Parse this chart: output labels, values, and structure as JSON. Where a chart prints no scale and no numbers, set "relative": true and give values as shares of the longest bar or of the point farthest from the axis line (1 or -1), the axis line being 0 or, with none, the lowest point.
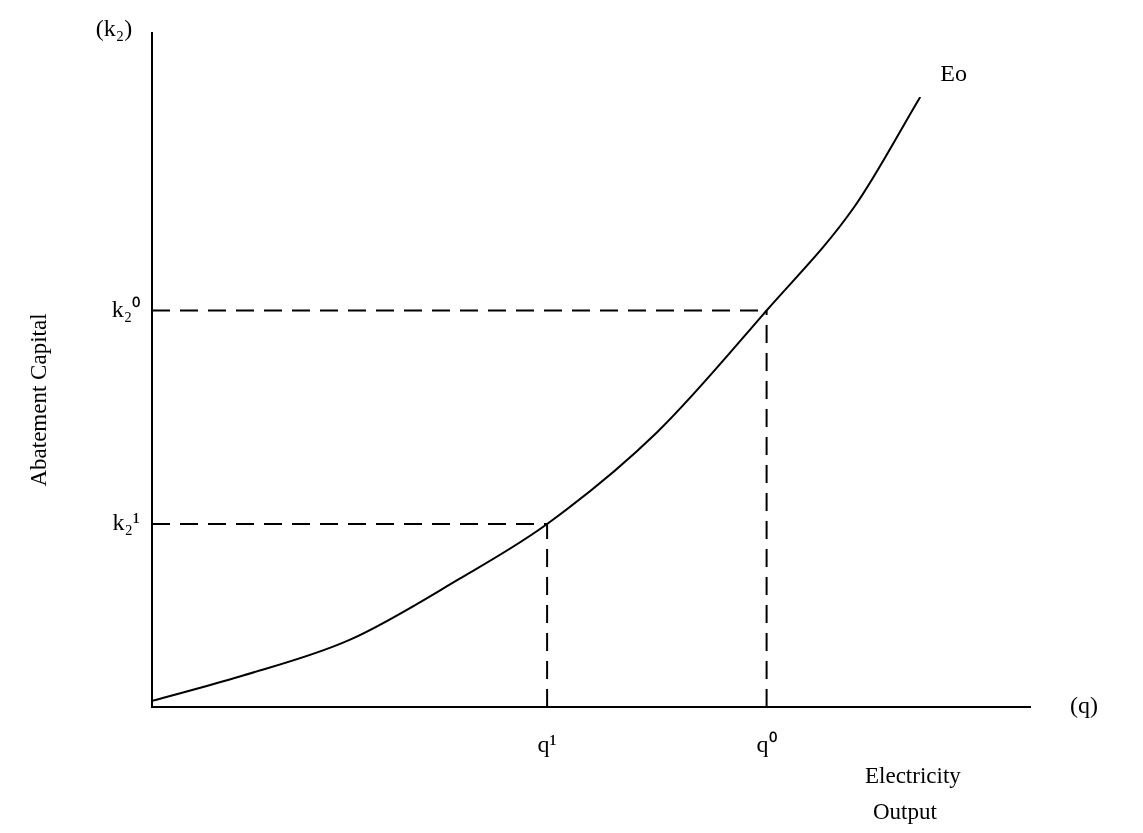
{
  "chart_data": {
    "type": "line",
    "xlabel": "Electricity Output",
    "ylabel": "Abatement Capital",
    "annotations": [
      "(k₂)",
      "(q)"
    ],
    "relative": true,
    "categories": [
      null,
      null,
      null,
      null,
      null,
      null,
      null,
      null,
      null,
      null,
      null,
      null,
      null,
      null,
      null,
      null,
      null,
      null,
      "q¹",
      null,
      null,
      null,
      null,
      null,
      null,
      null,
      null,
      null,
      "q⁰",
      null,
      null,
      null,
      null,
      null,
      null,
      null,
      null,
      null,
      null,
      null,
      null
    ],
    "grid": false,
    "legend": false,
    "marker": "none",
    "series": [
      {
        "name": "Eo",
        "color": "#000000",
        "line_style": "solid",
        "values": [
          0.01,
          null,
          null,
          null,
          0.05,
          null,
          null,
          null,
          null,
          0.11,
          null,
          null,
          null,
          null,
          0.21,
          null,
          null,
          null,
          0.3,
          null,
          null,
          null,
          null,
          0.45,
          null,
          null,
          null,
          null,
          0.65,
          null,
          null,
          null,
          0.82,
          null,
          null,
          1,
          null,
          null,
          null,
          null,
          null
        ]
      }
    ],
    "ref_lines": [
      {
        "axis": "y",
        "value": 0.3,
        "label": "k₂¹",
        "color": "#000000",
        "line_style": "dashed"
      },
      {
        "axis": "y",
        "value": 0.65,
        "label": "k₂⁰",
        "color": "#000000",
        "line_style": "dashed"
      },
      {
        "axis": "x",
        "value": "q¹",
        "color": "#000000",
        "line_style": "dashed"
      },
      {
        "axis": "x",
        "value": "q⁰",
        "color": "#000000",
        "line_style": "dashed"
      }
    ]
  }
}
